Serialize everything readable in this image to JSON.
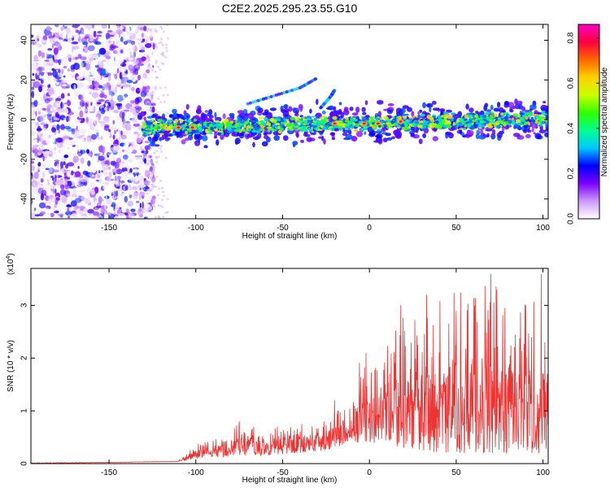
{
  "page": {
    "title": "C2E2.2025.295.23.55.G10"
  },
  "chart_data": [
    {
      "type": "heatmap",
      "title": "C2E2.2025.295.23.55.G10",
      "xlabel": "Height of straight line (km)",
      "ylabel": "Frequency (Hz)",
      "xlim": [
        -195,
        103
      ],
      "ylim": [
        -50,
        48
      ],
      "xticks": [
        -150,
        -100,
        -50,
        0,
        50,
        100
      ],
      "xtick_labels": [
        "-150",
        "-100",
        "-50",
        "0",
        "50",
        "100"
      ],
      "yticks": [
        -40,
        -20,
        0,
        20,
        40
      ],
      "ytick_labels": [
        "-40",
        "-20",
        "0",
        "20",
        "40"
      ],
      "noise_region_x": [
        -195,
        -128
      ],
      "signal_band": {
        "x_start": -130,
        "x_end": 103,
        "center_hz_at_start": -4,
        "center_hz_at_end": 0,
        "half_width_hz": 6
      },
      "peak_points": [
        {
          "x": -110,
          "y": -4
        },
        {
          "x": -102,
          "y": -4
        },
        {
          "x": -20,
          "y": -2
        },
        {
          "x": -3,
          "y": -2
        },
        {
          "x": 5,
          "y": -2
        },
        {
          "x": 18,
          "y": -1
        }
      ],
      "faint_traces": [
        {
          "x": [
            -70,
            -55,
            -40,
            -30
          ],
          "y": [
            8,
            12,
            16,
            21
          ]
        },
        {
          "x": [
            -28,
            -22,
            -20
          ],
          "y": [
            6,
            12,
            15
          ]
        }
      ],
      "colorbar": {
        "label": "Normalized spectral amplitude",
        "range": [
          0.0,
          0.86
        ],
        "ticks": [
          0.0,
          0.2,
          0.4,
          0.6,
          0.8
        ],
        "tick_labels": [
          "0.0",
          "0.2",
          "0.4",
          "0.6",
          "0.8"
        ],
        "colors": [
          "#ffffff",
          "#cc99ff",
          "#7a00ff",
          "#0000ff",
          "#00c8ff",
          "#00ff90",
          "#30ff00",
          "#c8ff00",
          "#ffd000",
          "#ff6600",
          "#ff0040",
          "#ff00c0"
        ]
      }
    },
    {
      "type": "line",
      "title": "",
      "xlabel": "Height of straight line (km)",
      "ylabel": "SNR (10 * v/v)",
      "yscale_note": "(x10",
      "yscale_exp": "4",
      "yscale_close": ")",
      "xlim": [
        -195,
        103
      ],
      "ylim": [
        0,
        3.7
      ],
      "xticks": [
        -150,
        -100,
        -50,
        0,
        50,
        100
      ],
      "xtick_labels": [
        "-150",
        "-100",
        "-50",
        "0",
        "50",
        "100"
      ],
      "yticks": [
        0,
        1,
        2,
        3
      ],
      "ytick_labels": [
        "0",
        "1",
        "2",
        "3"
      ],
      "series": [
        {
          "name": "SNR",
          "color": "#ee3333",
          "envelope": {
            "x": [
              -195,
              -150,
              -110,
              -102,
              -95,
              -80,
              -75,
              -60,
              -40,
              -25,
              -15,
              -10,
              -5,
              0,
              10,
              20,
              30,
              40,
              50,
              60,
              70,
              80,
              90,
              100,
              103
            ],
            "min": [
              0.0,
              0.02,
              0.04,
              0.08,
              0.12,
              0.12,
              0.15,
              0.15,
              0.2,
              0.25,
              0.35,
              0.4,
              0.4,
              0.4,
              0.35,
              0.3,
              0.25,
              0.2,
              0.2,
              0.2,
              0.2,
              0.2,
              0.2,
              0.2,
              0.2
            ],
            "max": [
              0.01,
              0.02,
              0.04,
              0.35,
              0.45,
              0.6,
              0.8,
              0.65,
              0.8,
              0.9,
              1.2,
              1.05,
              2.1,
              1.8,
              2.2,
              2.9,
              2.7,
              3.1,
              3.3,
              3.3,
              3.6,
              3.3,
              3.2,
              3.4,
              3.6
            ]
          },
          "notable_peaks": [
            {
              "x": -75,
              "y": 0.8
            },
            {
              "x": -20,
              "y": 1.2
            },
            {
              "x": -18,
              "y": 1.0
            },
            {
              "x": -2,
              "y": 2.1
            },
            {
              "x": 18,
              "y": 3.0
            },
            {
              "x": 33,
              "y": 3.2
            },
            {
              "x": 70,
              "y": 3.6
            },
            {
              "x": 99,
              "y": 3.6
            }
          ]
        }
      ]
    }
  ]
}
